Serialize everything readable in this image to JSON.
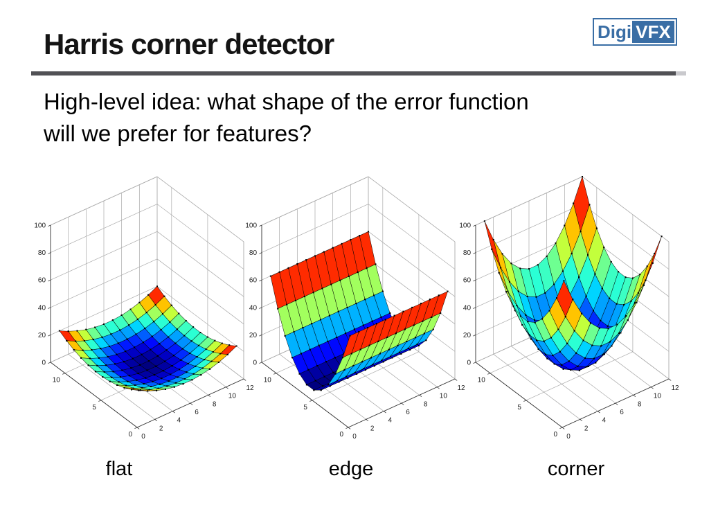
{
  "slide": {
    "title": "Harris corner detector",
    "subtitle_lines": [
      "High-level idea: what shape of the error function",
      "will we prefer for features?"
    ],
    "logo": {
      "digi": "Digi",
      "vfx": "VFX",
      "blue": "#3a6ea5"
    },
    "divider_color": "#515155"
  },
  "chart_data": {
    "type": "surface",
    "colormap": "jet",
    "legend": "none",
    "grid": true,
    "axes": {
      "xlim": [
        0,
        12
      ],
      "ylim": [
        0,
        12
      ],
      "zlim": [
        0,
        100
      ],
      "xticks": [
        0,
        2,
        4,
        6,
        8,
        10,
        12
      ],
      "yticks": [
        0,
        5,
        10
      ],
      "zticks": [
        0,
        20,
        40,
        60,
        80,
        100
      ]
    },
    "surfaces": [
      {
        "caption": "flat",
        "shape": "shallow radial paraboloid bowl, nearly flat center",
        "mode": "radial",
        "coef": 0.331,
        "center": 6.5,
        "grid_min": 1,
        "grid_max": 12,
        "z_peak": 20
      },
      {
        "caption": "edge",
        "shape": "parabolic valley (varies along y only, trough along x)",
        "mode": "valley_y",
        "coef": 1.98,
        "center": 6.5,
        "grid_min": 1,
        "grid_max": 12,
        "z_peak": 60
      },
      {
        "caption": "corner",
        "shape": "steep radial paraboloid bowl rising in all directions",
        "mode": "radial",
        "coef": 1.653,
        "center": 6.5,
        "grid_min": 1,
        "grid_max": 12,
        "z_peak": 100
      }
    ]
  }
}
